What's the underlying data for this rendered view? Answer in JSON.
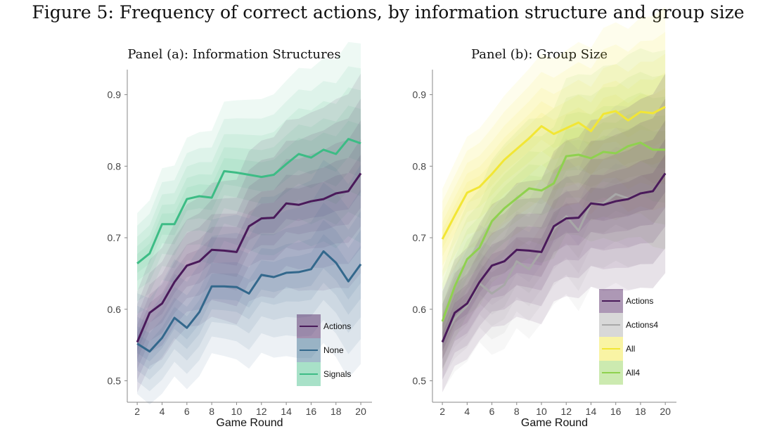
{
  "figure_title": "Figure 5: Frequency of correct actions, by information structure and group size",
  "chart_data": [
    {
      "type": "line",
      "title": "Panel (a): Information Structures",
      "xlabel": "Game Round",
      "ylabel": "",
      "xlim": [
        1.2,
        20.9
      ],
      "ylim": [
        0.47,
        0.935
      ],
      "xticks": [
        2,
        4,
        6,
        8,
        10,
        12,
        14,
        16,
        18,
        20
      ],
      "yticks": [
        0.5,
        0.6,
        0.7,
        0.8,
        0.9
      ],
      "legend_position": "bottom-right",
      "grid": false,
      "x": [
        2,
        3,
        4,
        5,
        6,
        7,
        8,
        9,
        10,
        11,
        12,
        13,
        14,
        15,
        16,
        17,
        18,
        19,
        20
      ],
      "series": [
        {
          "name": "Signals",
          "color": "#3dbc85",
          "values": [
            0.664,
            0.678,
            0.719,
            0.719,
            0.754,
            0.758,
            0.756,
            0.793,
            0.791,
            0.788,
            0.785,
            0.788,
            0.803,
            0.817,
            0.812,
            0.823,
            0.817,
            0.838,
            0.832
          ]
        },
        {
          "name": "Actions",
          "color": "#4a1a5a",
          "values": [
            0.554,
            0.595,
            0.608,
            0.638,
            0.661,
            0.667,
            0.683,
            0.682,
            0.68,
            0.716,
            0.727,
            0.728,
            0.748,
            0.746,
            0.751,
            0.754,
            0.762,
            0.765,
            0.79
          ]
        },
        {
          "name": "None",
          "color": "#33688c",
          "values": [
            0.552,
            0.541,
            0.56,
            0.588,
            0.574,
            0.596,
            0.632,
            0.632,
            0.631,
            0.622,
            0.648,
            0.645,
            0.651,
            0.652,
            0.656,
            0.681,
            0.665,
            0.639,
            0.663
          ]
        }
      ],
      "legend_order": [
        "Actions",
        "None",
        "Signals"
      ]
    },
    {
      "type": "line",
      "title": "Panel (b): Group Size",
      "xlabel": "Game Round",
      "ylabel": "",
      "xlim": [
        1.2,
        20.9
      ],
      "ylim": [
        0.47,
        0.935
      ],
      "xticks": [
        2,
        4,
        6,
        8,
        10,
        12,
        14,
        16,
        18,
        20
      ],
      "yticks": [
        0.5,
        0.6,
        0.7,
        0.8,
        0.9
      ],
      "legend_position": "bottom-right",
      "grid": false,
      "x": [
        2,
        3,
        4,
        5,
        6,
        7,
        8,
        9,
        10,
        11,
        12,
        13,
        14,
        15,
        16,
        17,
        18,
        19,
        20
      ],
      "series": [
        {
          "name": "All",
          "color": "#f2e635",
          "values": [
            0.698,
            0.731,
            0.763,
            0.771,
            0.789,
            0.809,
            0.824,
            0.839,
            0.856,
            0.845,
            0.853,
            0.861,
            0.849,
            0.873,
            0.877,
            0.864,
            0.876,
            0.874,
            0.883
          ]
        },
        {
          "name": "All4",
          "color": "#8fd14f",
          "values": [
            0.583,
            0.632,
            0.67,
            0.686,
            0.723,
            0.741,
            0.755,
            0.769,
            0.766,
            0.776,
            0.814,
            0.816,
            0.811,
            0.82,
            0.818,
            0.828,
            0.833,
            0.823,
            0.823
          ]
        },
        {
          "name": "Actions4",
          "color": "#a8a8a8",
          "values": [
            0.555,
            0.587,
            0.605,
            0.636,
            0.622,
            0.634,
            0.667,
            0.656,
            0.682,
            0.712,
            0.73,
            0.71,
            0.748,
            0.748,
            0.761,
            0.755,
            0.762,
            0.765,
            0.79
          ]
        },
        {
          "name": "Actions",
          "color": "#4a1a5a",
          "values": [
            0.554,
            0.595,
            0.608,
            0.638,
            0.661,
            0.667,
            0.683,
            0.682,
            0.68,
            0.716,
            0.727,
            0.728,
            0.748,
            0.746,
            0.751,
            0.754,
            0.762,
            0.765,
            0.79
          ]
        }
      ],
      "legend_order": [
        "Actions",
        "Actions4",
        "All",
        "All4"
      ]
    }
  ]
}
